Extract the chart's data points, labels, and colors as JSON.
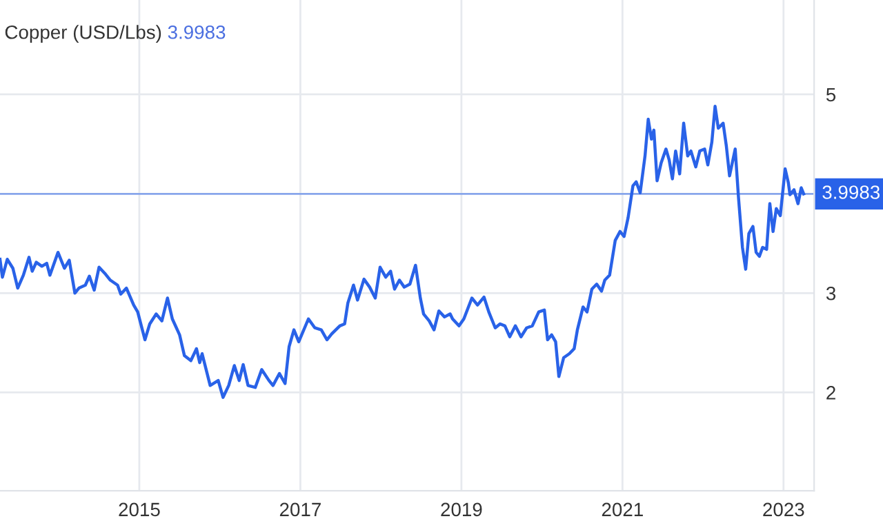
{
  "chart_data": {
    "type": "line",
    "title": "Copper (USD/Lbs)",
    "annotations": [
      "3.9983"
    ],
    "x": [
      2013.27,
      2013.3,
      2013.36,
      2013.43,
      2013.49,
      2013.56,
      2013.63,
      2013.67,
      2013.72,
      2013.79,
      2013.85,
      2013.89,
      2013.99,
      2014.07,
      2014.13,
      2014.2,
      2014.25,
      2014.33,
      2014.38,
      2014.44,
      2014.5,
      2014.57,
      2014.64,
      2014.73,
      2014.77,
      2014.84,
      2014.93,
      2014.98,
      2015.07,
      2015.13,
      2015.21,
      2015.28,
      2015.35,
      2015.41,
      2015.5,
      2015.56,
      2015.64,
      2015.71,
      2015.75,
      2015.78,
      2015.88,
      2015.98,
      2016.04,
      2016.11,
      2016.18,
      2016.24,
      2016.29,
      2016.35,
      2016.44,
      2016.52,
      2016.61,
      2016.66,
      2016.74,
      2016.81,
      2016.86,
      2016.92,
      2016.98,
      2017.1,
      2017.18,
      2017.26,
      2017.33,
      2017.39,
      2017.49,
      2017.55,
      2017.59,
      2017.66,
      2017.71,
      2017.79,
      2017.86,
      2017.93,
      2017.99,
      2018.06,
      2018.12,
      2018.17,
      2018.23,
      2018.29,
      2018.36,
      2018.43,
      2018.49,
      2018.53,
      2018.6,
      2018.66,
      2018.72,
      2018.79,
      2018.86,
      2018.89,
      2018.97,
      2019.03,
      2019.13,
      2019.2,
      2019.28,
      2019.34,
      2019.42,
      2019.48,
      2019.54,
      2019.6,
      2019.67,
      2019.74,
      2019.81,
      2019.88,
      2019.96,
      2020.03,
      2020.07,
      2020.12,
      2020.17,
      2020.21,
      2020.27,
      2020.34,
      2020.4,
      2020.44,
      2020.51,
      2020.56,
      2020.62,
      2020.68,
      2020.74,
      2020.78,
      2020.84,
      2020.91,
      2020.97,
      2021.02,
      2021.07,
      2021.13,
      2021.17,
      2021.22,
      2021.28,
      2021.32,
      2021.36,
      2021.39,
      2021.43,
      2021.48,
      2021.54,
      2021.58,
      2021.62,
      2021.66,
      2021.71,
      2021.76,
      2021.81,
      2021.85,
      2021.91,
      2021.96,
      2022.02,
      2022.06,
      2022.11,
      2022.15,
      2022.19,
      2022.25,
      2022.29,
      2022.33,
      2022.4,
      2022.44,
      2022.49,
      2022.53,
      2022.57,
      2022.62,
      2022.66,
      2022.7,
      2022.74,
      2022.79,
      2022.83,
      2022.87,
      2022.91,
      2022.96,
      2023.02,
      2023.06,
      2023.08,
      2023.13,
      2023.18,
      2023.22,
      2023.25
    ],
    "series": [
      {
        "color": "#2962e8",
        "values": [
          3.34,
          3.16,
          3.34,
          3.25,
          3.05,
          3.18,
          3.36,
          3.22,
          3.31,
          3.27,
          3.3,
          3.18,
          3.41,
          3.25,
          3.33,
          3.0,
          3.05,
          3.08,
          3.17,
          3.03,
          3.26,
          3.2,
          3.13,
          3.08,
          2.99,
          3.05,
          2.88,
          2.81,
          2.53,
          2.69,
          2.79,
          2.72,
          2.95,
          2.74,
          2.58,
          2.37,
          2.32,
          2.44,
          2.3,
          2.39,
          2.07,
          2.12,
          1.95,
          2.07,
          2.27,
          2.12,
          2.28,
          2.07,
          2.05,
          2.23,
          2.12,
          2.07,
          2.19,
          2.09,
          2.46,
          2.63,
          2.51,
          2.74,
          2.65,
          2.63,
          2.53,
          2.59,
          2.67,
          2.69,
          2.9,
          3.08,
          2.93,
          3.14,
          3.06,
          2.95,
          3.26,
          3.16,
          3.22,
          3.04,
          3.13,
          3.06,
          3.09,
          3.28,
          2.95,
          2.79,
          2.72,
          2.63,
          2.82,
          2.76,
          2.79,
          2.74,
          2.67,
          2.74,
          2.95,
          2.88,
          2.96,
          2.81,
          2.65,
          2.69,
          2.67,
          2.56,
          2.67,
          2.56,
          2.65,
          2.67,
          2.81,
          2.83,
          2.53,
          2.58,
          2.51,
          2.16,
          2.35,
          2.39,
          2.44,
          2.63,
          2.86,
          2.81,
          3.04,
          3.09,
          3.02,
          3.13,
          3.18,
          3.53,
          3.62,
          3.57,
          3.76,
          4.08,
          4.12,
          4.01,
          4.38,
          4.75,
          4.55,
          4.64,
          4.13,
          4.31,
          4.45,
          4.34,
          4.15,
          4.43,
          4.2,
          4.71,
          4.38,
          4.43,
          4.27,
          4.43,
          4.45,
          4.29,
          4.52,
          4.88,
          4.66,
          4.71,
          4.48,
          4.18,
          4.45,
          3.97,
          3.46,
          3.24,
          3.6,
          3.67,
          3.41,
          3.37,
          3.46,
          3.44,
          3.9,
          3.62,
          3.85,
          3.78,
          4.25,
          4.11,
          3.99,
          4.04,
          3.9,
          4.06,
          3.9983
        ]
      }
    ],
    "xlim": [
      2013.27,
      2023.38
    ],
    "ylim": [
      1.01,
      5.95
    ],
    "xticks": [
      2015,
      2017,
      2019,
      2021,
      2023
    ],
    "yticks": [
      2,
      3,
      {
        "value": 4,
        "label": null
      },
      5
    ],
    "ref_lines": [
      {
        "axis": "y",
        "value": 3.9983,
        "label": "3.9983",
        "color": "#2962e8"
      }
    ],
    "grid": true
  }
}
